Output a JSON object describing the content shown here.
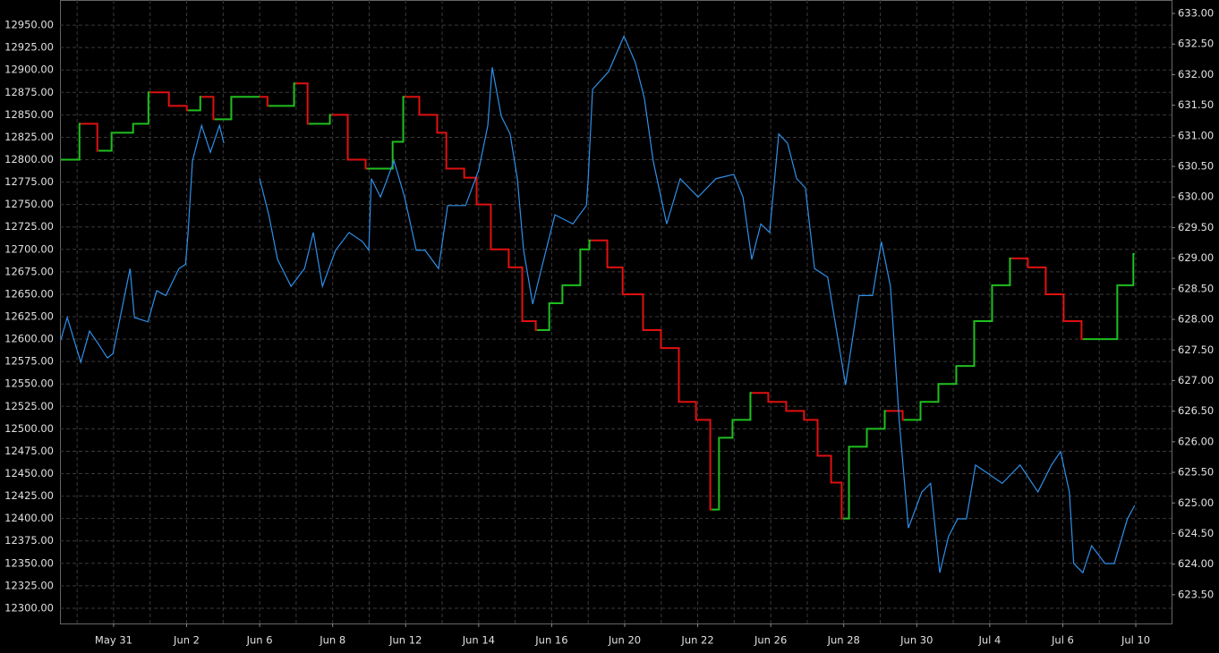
{
  "chart_data": {
    "type": "line",
    "xlim": [
      -0.47,
      29.98
    ],
    "xticks": [
      {
        "value": 1,
        "label": "May 31"
      },
      {
        "value": 3,
        "label": "Jun 2"
      },
      {
        "value": 5,
        "label": "Jun 6"
      },
      {
        "value": 7,
        "label": "Jun 8"
      },
      {
        "value": 9,
        "label": "Jun 12"
      },
      {
        "value": 11,
        "label": "Jun 14"
      },
      {
        "value": 13,
        "label": "Jun 16"
      },
      {
        "value": 15,
        "label": "Jun 20"
      },
      {
        "value": 17,
        "label": "Jun 22"
      },
      {
        "value": 19,
        "label": "Jun 26"
      },
      {
        "value": 21,
        "label": "Jun 28"
      },
      {
        "value": 23,
        "label": "Jun 30"
      },
      {
        "value": 25,
        "label": "Jul 4"
      },
      {
        "value": 27,
        "label": "Jul 6"
      },
      {
        "value": 29,
        "label": "Jul 10"
      }
    ],
    "x_minor_ticks": [
      0,
      2,
      4,
      6,
      8,
      10,
      12,
      14,
      16,
      18,
      20,
      22,
      24,
      26,
      28
    ],
    "ylim": [
      12283,
      12978
    ],
    "yticks": [
      {
        "value": 12300,
        "label": "12300.00"
      },
      {
        "value": 12325,
        "label": "12325.00"
      },
      {
        "value": 12350,
        "label": "12350.00"
      },
      {
        "value": 12375,
        "label": "12375.00"
      },
      {
        "value": 12400,
        "label": "12400.00"
      },
      {
        "value": 12425,
        "label": "12425.00"
      },
      {
        "value": 12450,
        "label": "12450.00"
      },
      {
        "value": 12475,
        "label": "12475.00"
      },
      {
        "value": 12500,
        "label": "12500.00"
      },
      {
        "value": 12525,
        "label": "12525.00"
      },
      {
        "value": 12550,
        "label": "12550.00"
      },
      {
        "value": 12575,
        "label": "12575.00"
      },
      {
        "value": 12600,
        "label": "12600.00"
      },
      {
        "value": 12625,
        "label": "12625.00"
      },
      {
        "value": 12650,
        "label": "12650.00"
      },
      {
        "value": 12675,
        "label": "12675.00"
      },
      {
        "value": 12700,
        "label": "12700.00"
      },
      {
        "value": 12725,
        "label": "12725.00"
      },
      {
        "value": 12750,
        "label": "12750.00"
      },
      {
        "value": 12775,
        "label": "12775.00"
      },
      {
        "value": 12800,
        "label": "12800.00"
      },
      {
        "value": 12825,
        "label": "12825.00"
      },
      {
        "value": 12850,
        "label": "12850.00"
      },
      {
        "value": 12875,
        "label": "12875.00"
      },
      {
        "value": 12900,
        "label": "12900.00"
      },
      {
        "value": 12925,
        "label": "12925.00"
      },
      {
        "value": 12950,
        "label": "12950.00"
      }
    ],
    "y2lim": [
      623.03,
      633.22
    ],
    "y2ticks": [
      {
        "value": 623.5,
        "label": "623.50"
      },
      {
        "value": 624,
        "label": "624.00"
      },
      {
        "value": 624.5,
        "label": "624.50"
      },
      {
        "value": 625,
        "label": "625.00"
      },
      {
        "value": 625.5,
        "label": "625.50"
      },
      {
        "value": 626,
        "label": "626.00"
      },
      {
        "value": 626.5,
        "label": "626.50"
      },
      {
        "value": 627,
        "label": "627.00"
      },
      {
        "value": 627.5,
        "label": "627.50"
      },
      {
        "value": 628,
        "label": "628.00"
      },
      {
        "value": 628.5,
        "label": "628.50"
      },
      {
        "value": 629,
        "label": "629.00"
      },
      {
        "value": 629.5,
        "label": "629.50"
      },
      {
        "value": 630,
        "label": "630.00"
      },
      {
        "value": 630.5,
        "label": "630.50"
      },
      {
        "value": 631,
        "label": "631.00"
      },
      {
        "value": 631.5,
        "label": "631.50"
      },
      {
        "value": 632,
        "label": "632.00"
      },
      {
        "value": 632.5,
        "label": "632.50"
      },
      {
        "value": 633,
        "label": "633.00"
      }
    ],
    "grid": true,
    "series": [
      {
        "color_up": "#1fbf1f",
        "color_down": "#e01010",
        "x": [
          -0.45,
          0.1,
          0.59,
          0.98,
          1.57,
          1.99,
          2.55,
          3.04,
          3.41,
          3.77,
          4.26,
          5.0,
          5.25,
          5.98,
          6.35,
          6.96,
          7.45,
          7.94,
          8.68,
          8.97,
          9.41,
          9.9,
          10.15,
          10.64,
          10.98,
          11.37,
          11.86,
          12.23,
          12.6,
          12.97,
          13.33,
          13.82,
          14.07,
          14.56,
          14.98,
          15.54,
          16.03,
          16.52,
          16.99,
          17.38,
          17.62,
          17.99,
          18.48,
          18.97,
          19.46,
          19.95,
          20.32,
          20.69,
          20.98,
          21.18,
          21.67,
          22.16,
          22.65,
          23.14,
          23.63,
          24.12,
          24.61,
          25.1,
          25.59,
          26.08,
          26.57,
          27.06,
          27.55,
          28.04,
          28.53,
          28.97
        ],
        "values": [
          12800,
          12840,
          12810,
          12830,
          12840,
          12875,
          12860,
          12855,
          12870,
          12845,
          12870,
          12870,
          12860,
          12885,
          12840,
          12850,
          12800,
          12790,
          12820,
          12870,
          12850,
          12830,
          12790,
          12780,
          12750,
          12700,
          12680,
          12620,
          12610,
          12640,
          12660,
          12700,
          12710,
          12680,
          12650,
          12610,
          12590,
          12530,
          12510,
          12410,
          12490,
          12510,
          12540,
          12530,
          12520,
          12510,
          12470,
          12440,
          12400,
          12480,
          12500,
          12520,
          12510,
          12530,
          12550,
          12570,
          12620,
          12660,
          12690,
          12680,
          12650,
          12620,
          12600,
          12600,
          12660,
          12695
        ]
      },
      {
        "color": "#2f8fe8",
        "axis": "y2",
        "x": [
          -0.45,
          -0.27,
          0.1,
          0.34,
          0.59,
          0.83,
          0.98,
          1.45,
          1.57,
          1.94,
          2.18,
          2.43,
          2.79,
          2.97,
          3.04,
          3.16,
          3.41,
          3.65,
          3.9,
          4.02,
          4.51,
          5.0,
          5.25,
          5.49,
          5.86,
          6.23,
          6.47,
          6.72,
          7.08,
          7.45,
          7.82,
          7.99,
          8.06,
          8.31,
          8.68,
          8.97,
          9.29,
          9.53,
          9.9,
          10.15,
          10.64,
          11.0,
          11.25,
          11.37,
          11.62,
          11.86,
          12.06,
          12.23,
          12.48,
          12.72,
          13.09,
          13.58,
          13.95,
          14.0,
          14.12,
          14.56,
          14.98,
          15.29,
          15.54,
          15.78,
          16.15,
          16.52,
          17.01,
          17.5,
          17.99,
          18.24,
          18.48,
          18.73,
          18.97,
          19.22,
          19.46,
          19.71,
          19.95,
          20.2,
          20.56,
          21.05,
          21.42,
          21.79,
          22.03,
          22.28,
          22.52,
          22.77,
          23.14,
          23.38,
          23.63,
          23.87,
          24.12,
          24.36,
          24.61,
          24.98,
          25.34,
          25.83,
          26.32,
          26.69,
          26.94,
          27.18,
          27.3,
          27.55,
          27.79,
          28.16,
          28.41,
          28.77,
          28.97
        ],
        "values": [
          627.66,
          628.03,
          627.3,
          627.81,
          627.59,
          627.37,
          627.44,
          628.83,
          628.03,
          627.96,
          628.47,
          628.39,
          628.83,
          628.9,
          629.42,
          630.59,
          631.17,
          630.73,
          631.17,
          630.88,
          null,
          630.3,
          629.71,
          628.98,
          628.54,
          628.83,
          629.42,
          628.54,
          629.13,
          629.42,
          629.27,
          629.13,
          630.3,
          630.0,
          630.59,
          630.0,
          629.13,
          629.13,
          628.83,
          629.86,
          629.86,
          630.44,
          631.17,
          632.12,
          631.32,
          631.03,
          630.3,
          629.13,
          628.25,
          628.83,
          629.71,
          629.56,
          629.86,
          630.3,
          631.76,
          632.05,
          632.63,
          632.2,
          631.61,
          630.59,
          629.56,
          630.3,
          630.0,
          630.3,
          630.37,
          630.0,
          628.98,
          629.56,
          629.42,
          631.03,
          630.88,
          630.3,
          630.15,
          628.83,
          628.69,
          626.93,
          628.39,
          628.39,
          629.27,
          628.54,
          626.35,
          624.59,
          625.18,
          625.32,
          623.86,
          624.45,
          624.74,
          624.74,
          625.62,
          625.47,
          625.32,
          625.62,
          625.18,
          625.62,
          625.84,
          625.18,
          624.01,
          623.86,
          624.3,
          624.01,
          624.01,
          624.74,
          624.96
        ]
      }
    ]
  }
}
